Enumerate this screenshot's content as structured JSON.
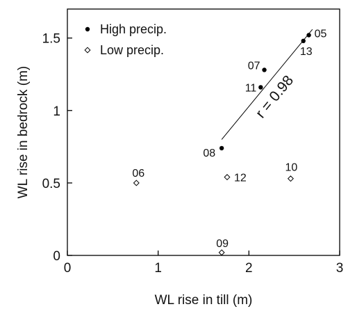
{
  "chart_data": {
    "type": "scatter",
    "xlabel": "WL rise in till (m)",
    "ylabel": "WL rise in bedrock (m)",
    "xlim": [
      0,
      3
    ],
    "ylim": [
      0,
      1.7
    ],
    "x_ticks": [
      "0",
      "1",
      "2",
      "3"
    ],
    "y_ticks": [
      "0",
      "0.5",
      "1",
      "1.5"
    ],
    "grid": false,
    "legend_position": "top-left",
    "series": [
      {
        "name": "High precip.",
        "marker": "filled-circle",
        "color": "#000000",
        "points": [
          {
            "label": "05",
            "x": 2.66,
            "y": 1.52
          },
          {
            "label": "13",
            "x": 2.6,
            "y": 1.48
          },
          {
            "label": "07",
            "x": 2.17,
            "y": 1.28
          },
          {
            "label": "11",
            "x": 2.13,
            "y": 1.16
          },
          {
            "label": "08",
            "x": 1.7,
            "y": 0.74
          }
        ]
      },
      {
        "name": "Low precip.",
        "marker": "open-diamond",
        "color": "#000000",
        "points": [
          {
            "label": "06",
            "x": 0.76,
            "y": 0.5
          },
          {
            "label": "12",
            "x": 1.76,
            "y": 0.54
          },
          {
            "label": "10",
            "x": 2.46,
            "y": 0.53
          },
          {
            "label": "09",
            "x": 1.7,
            "y": 0.02
          }
        ]
      }
    ],
    "fit_line": {
      "x": [
        1.7,
        2.7
      ],
      "y": [
        0.8,
        1.56
      ]
    },
    "annotation": "r = 0.98"
  }
}
